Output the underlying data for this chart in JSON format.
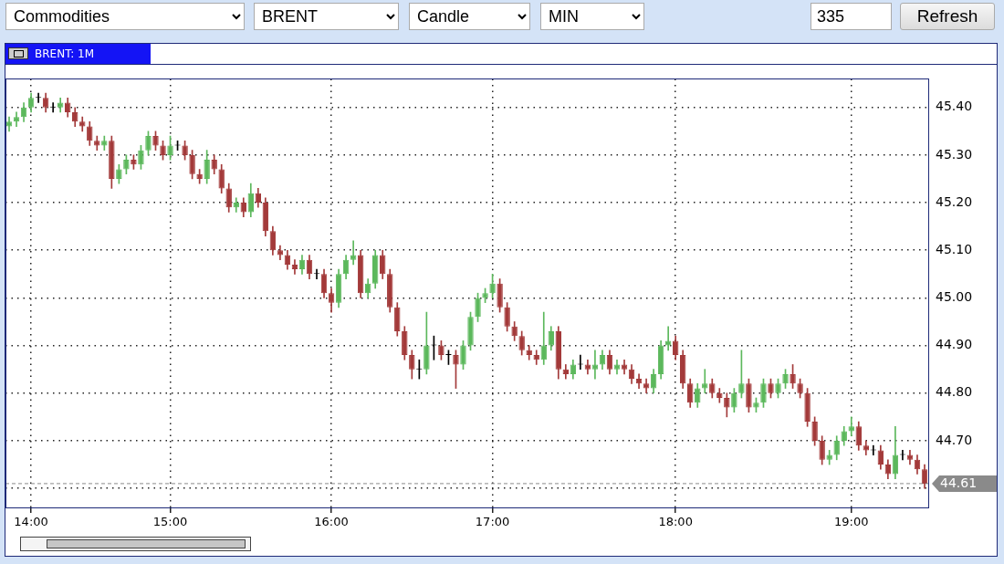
{
  "chart_data": {
    "type": "candlestick",
    "title": "BRENT: 1M",
    "annotations": [
      "Commodities",
      "BRENT",
      "Candle",
      "MIN",
      "335",
      "Refresh"
    ],
    "categories": [
      null,
      null,
      null,
      "14:00",
      null,
      null,
      null,
      null,
      null,
      null,
      null,
      null,
      null,
      null,
      null,
      null,
      null,
      null,
      null,
      null,
      null,
      null,
      "15:00",
      null,
      null,
      null,
      null,
      null,
      null,
      null,
      null,
      null,
      null,
      null,
      null,
      null,
      null,
      null,
      null,
      null,
      null,
      null,
      null,
      null,
      "16:00",
      null,
      null,
      null,
      null,
      null,
      null,
      null,
      null,
      null,
      null,
      null,
      null,
      null,
      null,
      null,
      null,
      null,
      null,
      null,
      null,
      null,
      "17:00",
      null,
      null,
      null,
      null,
      null,
      null,
      null,
      null,
      null,
      null,
      null,
      null,
      null,
      null,
      null,
      null,
      null,
      null,
      null,
      null,
      null,
      null,
      null,
      null,
      "18:00",
      null,
      null,
      null,
      null,
      null,
      null,
      null,
      null,
      null,
      null,
      null,
      null,
      null,
      null,
      null,
      null,
      null,
      null,
      null,
      null,
      null,
      null,
      null,
      "19:00",
      null,
      null,
      null,
      null,
      null,
      null,
      null,
      null,
      null,
      null
    ],
    "ohlc": [
      [
        45.36,
        45.38,
        45.35,
        45.37
      ],
      [
        45.37,
        45.39,
        45.36,
        45.38
      ],
      [
        45.38,
        45.41,
        45.37,
        45.4
      ],
      [
        45.4,
        45.43,
        45.39,
        45.42
      ],
      [
        45.42,
        45.43,
        45.41,
        45.42
      ],
      [
        45.42,
        45.43,
        45.39,
        45.4
      ],
      [
        45.4,
        45.41,
        45.39,
        45.4
      ],
      [
        45.4,
        45.42,
        45.39,
        45.41
      ],
      [
        45.41,
        45.42,
        45.38,
        45.39
      ],
      [
        45.39,
        45.4,
        45.36,
        45.37
      ],
      [
        45.37,
        45.38,
        45.35,
        45.36
      ],
      [
        45.36,
        45.37,
        45.32,
        45.33
      ],
      [
        45.33,
        45.34,
        45.31,
        45.32
      ],
      [
        45.32,
        45.34,
        45.31,
        45.33
      ],
      [
        45.33,
        45.34,
        45.23,
        45.25
      ],
      [
        45.25,
        45.28,
        45.24,
        45.27
      ],
      [
        45.27,
        45.3,
        45.26,
        45.29
      ],
      [
        45.29,
        45.3,
        45.27,
        45.28
      ],
      [
        45.28,
        45.32,
        45.27,
        45.31
      ],
      [
        45.31,
        45.35,
        45.3,
        45.34
      ],
      [
        45.34,
        45.35,
        45.31,
        45.32
      ],
      [
        45.32,
        45.33,
        45.29,
        45.3
      ],
      [
        45.3,
        45.34,
        45.29,
        45.32
      ],
      [
        45.32,
        45.33,
        45.31,
        45.32
      ],
      [
        45.32,
        45.33,
        45.29,
        45.3
      ],
      [
        45.3,
        45.31,
        45.25,
        45.26
      ],
      [
        45.26,
        45.27,
        45.24,
        45.25
      ],
      [
        45.25,
        45.31,
        45.24,
        45.29
      ],
      [
        45.29,
        45.3,
        45.26,
        45.27
      ],
      [
        45.27,
        45.28,
        45.22,
        45.23
      ],
      [
        45.23,
        45.24,
        45.18,
        45.19
      ],
      [
        45.19,
        45.21,
        45.18,
        45.2
      ],
      [
        45.2,
        45.21,
        45.17,
        45.18
      ],
      [
        45.18,
        45.24,
        45.17,
        45.22
      ],
      [
        45.22,
        45.23,
        45.19,
        45.2
      ],
      [
        45.2,
        45.21,
        45.13,
        45.14
      ],
      [
        45.14,
        45.15,
        45.09,
        45.1
      ],
      [
        45.1,
        45.11,
        45.08,
        45.09
      ],
      [
        45.09,
        45.1,
        45.06,
        45.07
      ],
      [
        45.07,
        45.08,
        45.05,
        45.06
      ],
      [
        45.06,
        45.09,
        45.05,
        45.08
      ],
      [
        45.08,
        45.09,
        45.04,
        45.05
      ],
      [
        45.05,
        45.06,
        45.04,
        45.05
      ],
      [
        45.05,
        45.06,
        45.0,
        45.01
      ],
      [
        45.01,
        45.02,
        44.97,
        44.99
      ],
      [
        44.99,
        45.06,
        44.98,
        45.05
      ],
      [
        45.05,
        45.09,
        45.04,
        45.08
      ],
      [
        45.08,
        45.12,
        45.07,
        45.09
      ],
      [
        45.09,
        45.1,
        45.0,
        45.01
      ],
      [
        45.01,
        45.04,
        45.0,
        45.03
      ],
      [
        45.03,
        45.1,
        45.02,
        45.09
      ],
      [
        45.09,
        45.1,
        45.04,
        45.05
      ],
      [
        45.05,
        45.06,
        44.97,
        44.98
      ],
      [
        44.98,
        44.99,
        44.92,
        44.93
      ],
      [
        44.93,
        44.94,
        44.87,
        44.88
      ],
      [
        44.88,
        44.89,
        44.83,
        44.85
      ],
      [
        44.85,
        44.87,
        44.83,
        44.85
      ],
      [
        44.85,
        44.97,
        44.84,
        44.9
      ],
      [
        44.9,
        44.92,
        44.87,
        44.9
      ],
      [
        44.9,
        44.91,
        44.87,
        44.88
      ],
      [
        44.88,
        44.89,
        44.86,
        44.88
      ],
      [
        44.88,
        44.89,
        44.81,
        44.86
      ],
      [
        44.86,
        44.91,
        44.85,
        44.9
      ],
      [
        44.9,
        44.97,
        44.89,
        44.96
      ],
      [
        44.96,
        45.01,
        44.95,
        45.0
      ],
      [
        45.0,
        45.02,
        44.99,
        45.01
      ],
      [
        45.01,
        45.05,
        45.0,
        45.03
      ],
      [
        45.03,
        45.04,
        44.97,
        44.98
      ],
      [
        44.98,
        44.99,
        44.93,
        44.94
      ],
      [
        44.94,
        44.95,
        44.91,
        44.92
      ],
      [
        44.92,
        44.93,
        44.88,
        44.89
      ],
      [
        44.89,
        44.9,
        44.87,
        44.88
      ],
      [
        44.88,
        44.89,
        44.86,
        44.87
      ],
      [
        44.87,
        44.97,
        44.86,
        44.9
      ],
      [
        44.9,
        44.94,
        44.89,
        44.93
      ],
      [
        44.93,
        44.94,
        44.83,
        44.85
      ],
      [
        44.85,
        44.86,
        44.83,
        44.84
      ],
      [
        44.84,
        44.87,
        44.83,
        44.86
      ],
      [
        44.86,
        44.88,
        44.85,
        44.86
      ],
      [
        44.86,
        44.87,
        44.84,
        44.85
      ],
      [
        44.85,
        44.89,
        44.83,
        44.86
      ],
      [
        44.86,
        44.89,
        44.85,
        44.88
      ],
      [
        44.88,
        44.89,
        44.84,
        44.85
      ],
      [
        44.85,
        44.87,
        44.84,
        44.86
      ],
      [
        44.86,
        44.87,
        44.84,
        44.85
      ],
      [
        44.85,
        44.86,
        44.82,
        44.83
      ],
      [
        44.83,
        44.84,
        44.81,
        44.82
      ],
      [
        44.82,
        44.83,
        44.8,
        44.81
      ],
      [
        44.81,
        44.85,
        44.8,
        44.84
      ],
      [
        44.84,
        44.91,
        44.83,
        44.9
      ],
      [
        44.9,
        44.94,
        44.89,
        44.91
      ],
      [
        44.91,
        44.92,
        44.87,
        44.88
      ],
      [
        44.88,
        44.89,
        44.81,
        44.82
      ],
      [
        44.82,
        44.83,
        44.77,
        44.78
      ],
      [
        44.78,
        44.82,
        44.77,
        44.81
      ],
      [
        44.81,
        44.85,
        44.8,
        44.82
      ],
      [
        44.82,
        44.83,
        44.79,
        44.8
      ],
      [
        44.8,
        44.81,
        44.78,
        44.79
      ],
      [
        44.79,
        44.8,
        44.75,
        44.77
      ],
      [
        44.77,
        44.81,
        44.76,
        44.8
      ],
      [
        44.8,
        44.89,
        44.79,
        44.82
      ],
      [
        44.82,
        44.83,
        44.76,
        44.77
      ],
      [
        44.77,
        44.79,
        44.76,
        44.78
      ],
      [
        44.78,
        44.83,
        44.77,
        44.82
      ],
      [
        44.82,
        44.83,
        44.79,
        44.8
      ],
      [
        44.8,
        44.83,
        44.79,
        44.82
      ],
      [
        44.82,
        44.85,
        44.81,
        44.84
      ],
      [
        44.84,
        44.86,
        44.81,
        44.82
      ],
      [
        44.82,
        44.83,
        44.79,
        44.8
      ],
      [
        44.8,
        44.81,
        44.73,
        44.74
      ],
      [
        44.74,
        44.75,
        44.69,
        44.7
      ],
      [
        44.7,
        44.71,
        44.65,
        44.66
      ],
      [
        44.66,
        44.68,
        44.65,
        44.67
      ],
      [
        44.67,
        44.71,
        44.66,
        44.7
      ],
      [
        44.7,
        44.73,
        44.69,
        44.72
      ],
      [
        44.72,
        44.75,
        44.71,
        44.73
      ],
      [
        44.73,
        44.74,
        44.68,
        44.69
      ],
      [
        44.69,
        44.7,
        44.67,
        44.68
      ],
      [
        44.68,
        44.69,
        44.67,
        44.68
      ],
      [
        44.68,
        44.69,
        44.64,
        44.65
      ],
      [
        44.65,
        44.66,
        44.62,
        44.63
      ],
      [
        44.63,
        44.73,
        44.62,
        44.67
      ],
      [
        44.67,
        44.68,
        44.66,
        44.67
      ],
      [
        44.67,
        44.68,
        44.65,
        44.66
      ],
      [
        44.66,
        44.67,
        44.63,
        44.64
      ],
      [
        44.64,
        44.65,
        44.6,
        44.61
      ]
    ],
    "colors": [
      "#5cb85c",
      "#5cb85c",
      "#5cb85c",
      "#5cb85c",
      "#000000",
      "#a33a3a",
      "#000000",
      "#5cb85c",
      "#a33a3a",
      "#a33a3a",
      "#a33a3a",
      "#a33a3a",
      "#a33a3a",
      "#5cb85c",
      "#a33a3a",
      "#5cb85c",
      "#5cb85c",
      "#a33a3a",
      "#5cb85c",
      "#5cb85c",
      "#a33a3a",
      "#a33a3a",
      "#5cb85c",
      "#000000",
      "#a33a3a",
      "#a33a3a",
      "#a33a3a",
      "#5cb85c",
      "#a33a3a",
      "#a33a3a",
      "#a33a3a",
      "#5cb85c",
      "#a33a3a",
      "#5cb85c",
      "#a33a3a",
      "#a33a3a",
      "#a33a3a",
      "#a33a3a",
      "#a33a3a",
      "#a33a3a",
      "#5cb85c",
      "#a33a3a",
      "#000000",
      "#a33a3a",
      "#a33a3a",
      "#5cb85c",
      "#5cb85c",
      "#5cb85c",
      "#a33a3a",
      "#5cb85c",
      "#5cb85c",
      "#a33a3a",
      "#a33a3a",
      "#a33a3a",
      "#a33a3a",
      "#a33a3a",
      "#000000",
      "#5cb85c",
      "#000000",
      "#a33a3a",
      "#000000",
      "#a33a3a",
      "#5cb85c",
      "#5cb85c",
      "#5cb85c",
      "#5cb85c",
      "#5cb85c",
      "#a33a3a",
      "#a33a3a",
      "#a33a3a",
      "#a33a3a",
      "#a33a3a",
      "#a33a3a",
      "#5cb85c",
      "#5cb85c",
      "#a33a3a",
      "#a33a3a",
      "#5cb85c",
      "#000000",
      "#a33a3a",
      "#5cb85c",
      "#5cb85c",
      "#a33a3a",
      "#5cb85c",
      "#a33a3a",
      "#a33a3a",
      "#a33a3a",
      "#a33a3a",
      "#5cb85c",
      "#5cb85c",
      "#5cb85c",
      "#a33a3a",
      "#a33a3a",
      "#a33a3a",
      "#5cb85c",
      "#5cb85c",
      "#a33a3a",
      "#a33a3a",
      "#a33a3a",
      "#5cb85c",
      "#5cb85c",
      "#a33a3a",
      "#5cb85c",
      "#5cb85c",
      "#a33a3a",
      "#5cb85c",
      "#5cb85c",
      "#a33a3a",
      "#a33a3a",
      "#a33a3a",
      "#a33a3a",
      "#a33a3a",
      "#5cb85c",
      "#5cb85c",
      "#5cb85c",
      "#5cb85c",
      "#a33a3a",
      "#a33a3a",
      "#000000",
      "#a33a3a",
      "#a33a3a",
      "#5cb85c",
      "#000000",
      "#a33a3a",
      "#a33a3a",
      "#a33a3a"
    ],
    "ylim": [
      44.56,
      45.46
    ],
    "yticks": [
      {
        "value": 44.6,
        "label": null
      },
      {
        "value": 44.7,
        "label": "44.70"
      },
      {
        "value": 44.8,
        "label": "44.80"
      },
      {
        "value": 44.9,
        "label": "44.90"
      },
      {
        "value": 45.0,
        "label": "45.00"
      },
      {
        "value": 45.1,
        "label": "45.10"
      },
      {
        "value": 45.2,
        "label": "45.20"
      },
      {
        "value": 45.3,
        "label": "45.30"
      },
      {
        "value": 45.4,
        "label": "45.40"
      }
    ],
    "ref_lines": [
      {
        "axis": "y",
        "value": 44.61,
        "label": "44.61",
        "color": "#8a8a8a"
      }
    ],
    "grid": true
  }
}
